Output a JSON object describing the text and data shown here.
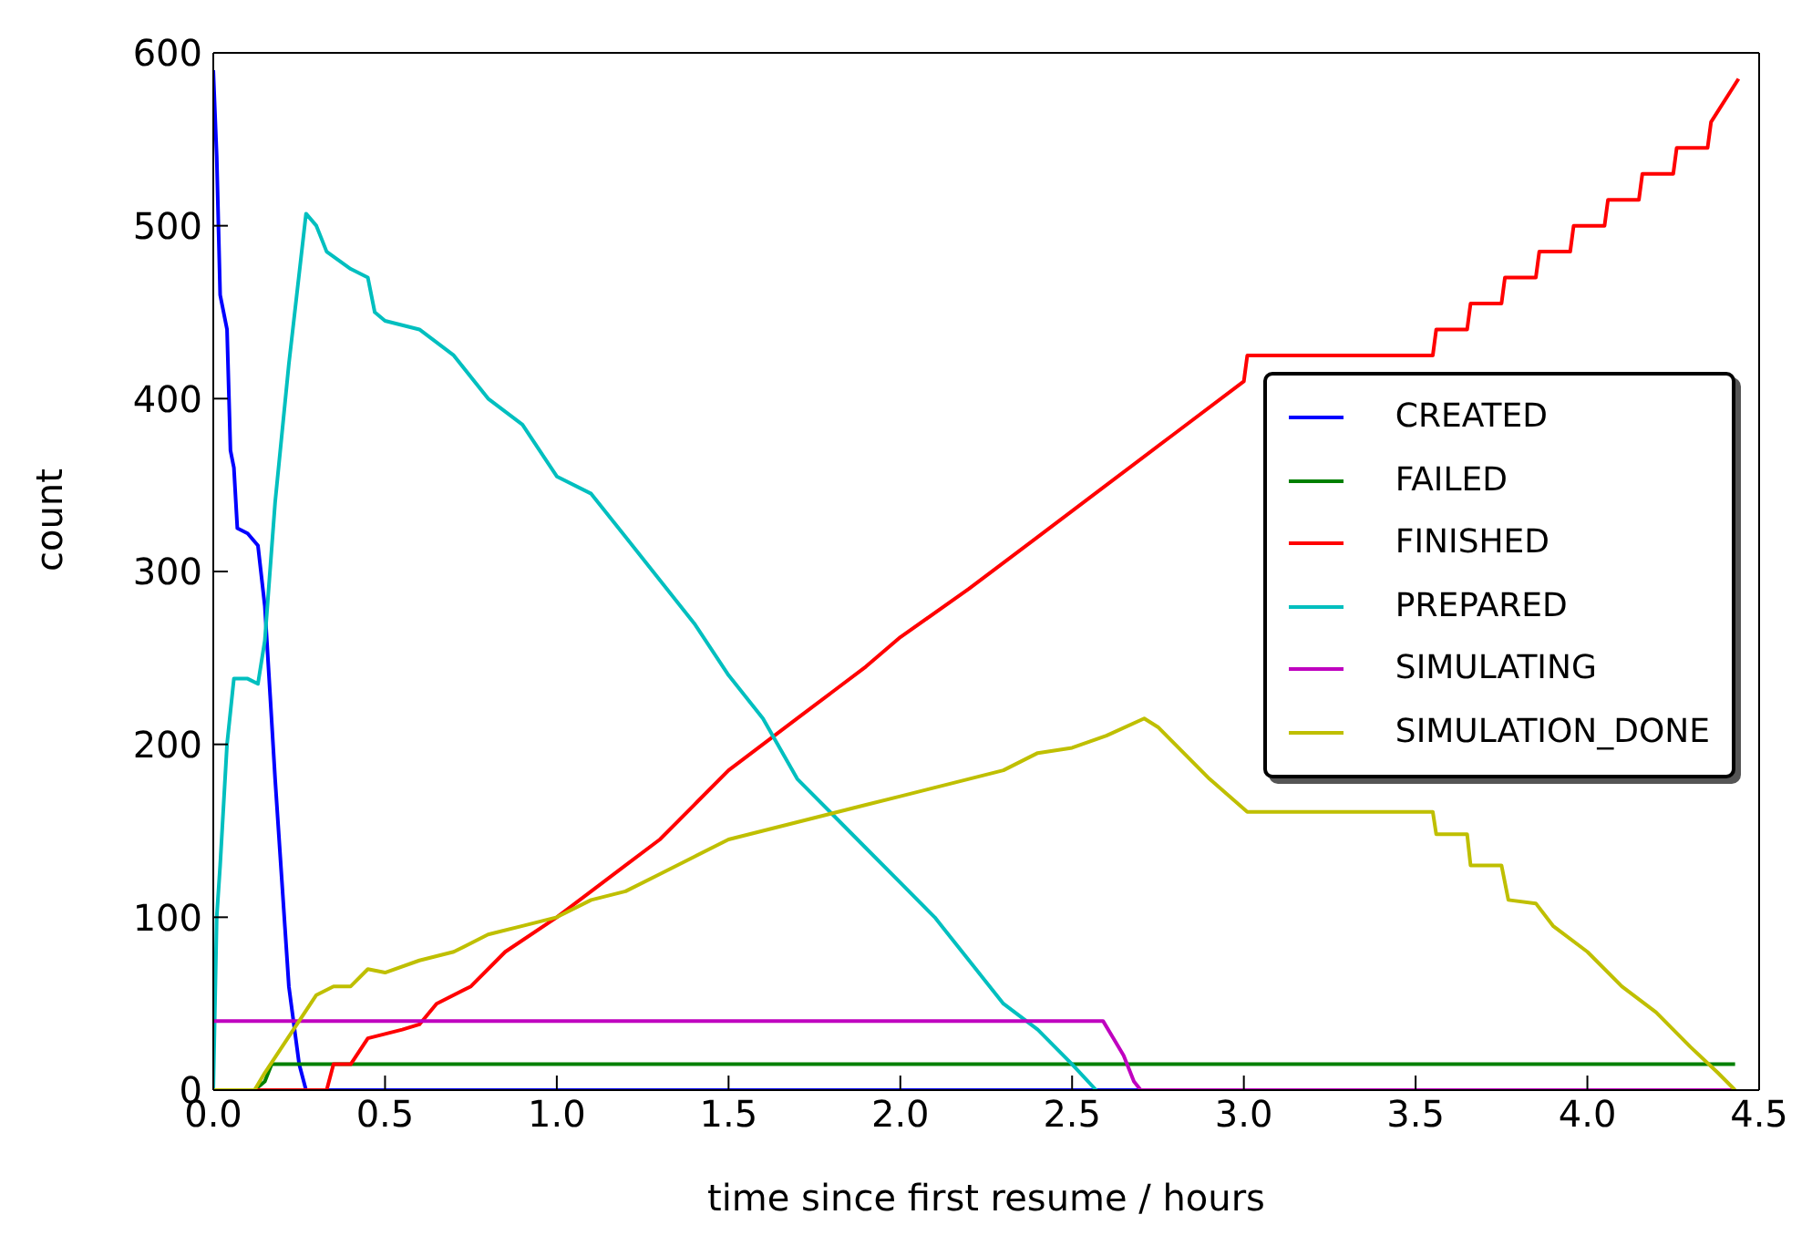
{
  "chart_data": {
    "type": "line",
    "xlabel": "time since first resume / hours",
    "ylabel": "count",
    "xlim": [
      0,
      4.5
    ],
    "ylim": [
      0,
      600
    ],
    "xticks": [
      {
        "value": 0,
        "label": "0.0"
      },
      {
        "value": 0.5,
        "label": "0.5"
      },
      {
        "value": 1,
        "label": "1.0"
      },
      {
        "value": 1.5,
        "label": "1.5"
      },
      {
        "value": 2,
        "label": "2.0"
      },
      {
        "value": 2.5,
        "label": "2.5"
      },
      {
        "value": 3,
        "label": "3.0"
      },
      {
        "value": 3.5,
        "label": "3.5"
      },
      {
        "value": 4,
        "label": "4.0"
      },
      {
        "value": 4.5,
        "label": "4.5"
      }
    ],
    "yticks": [
      0,
      100,
      200,
      300,
      400,
      500,
      600
    ],
    "grid": false,
    "legend": "right",
    "marker": "none",
    "line_style": "solid",
    "series": [
      {
        "name": "CREATED",
        "color": "#0000ff",
        "x": [
          0,
          0.01,
          0.02,
          0.04,
          0.05,
          0.06,
          0.07,
          0.1,
          0.13,
          0.15,
          0.18,
          0.2,
          0.22,
          0.25,
          0.27,
          4.43
        ],
        "values": [
          590,
          540,
          460,
          440,
          370,
          360,
          325,
          322,
          315,
          280,
          180,
          120,
          60,
          15,
          0,
          0
        ]
      },
      {
        "name": "FAILED",
        "color": "#008000",
        "x": [
          0,
          0.12,
          0.15,
          0.17,
          4.43
        ],
        "values": [
          0,
          0,
          5,
          15,
          15
        ]
      },
      {
        "name": "FINISHED",
        "color": "#ff0000",
        "x": [
          0,
          0.33,
          0.35,
          0.4,
          0.45,
          0.55,
          0.6,
          0.65,
          0.75,
          0.85,
          1,
          1.1,
          1.2,
          1.3,
          1.4,
          1.5,
          1.6,
          1.7,
          1.8,
          1.9,
          2,
          2.2,
          2.4,
          2.6,
          2.8,
          3,
          3.01,
          3.55,
          3.56,
          3.65,
          3.66,
          3.75,
          3.76,
          3.85,
          3.86,
          3.95,
          3.96,
          4.05,
          4.06,
          4.15,
          4.16,
          4.25,
          4.26,
          4.35,
          4.36,
          4.44
        ],
        "values": [
          0,
          0,
          15,
          15,
          30,
          35,
          38,
          50,
          60,
          80,
          100,
          115,
          130,
          145,
          165,
          185,
          200,
          215,
          230,
          245,
          262,
          290,
          320,
          350,
          380,
          410,
          425,
          425,
          440,
          440,
          455,
          455,
          470,
          470,
          485,
          485,
          500,
          500,
          515,
          515,
          530,
          530,
          545,
          545,
          560,
          585
        ]
      },
      {
        "name": "PREPARED",
        "color": "#00bfbf",
        "x": [
          0,
          0.01,
          0.02,
          0.04,
          0.06,
          0.1,
          0.13,
          0.15,
          0.18,
          0.22,
          0.27,
          0.3,
          0.33,
          0.4,
          0.45,
          0.47,
          0.5,
          0.6,
          0.7,
          0.8,
          0.9,
          1,
          1.1,
          1.2,
          1.3,
          1.4,
          1.5,
          1.6,
          1.7,
          1.8,
          1.9,
          2,
          2.1,
          2.2,
          2.3,
          2.4,
          2.5,
          2.57
        ],
        "values": [
          0,
          100,
          130,
          200,
          238,
          238,
          235,
          260,
          340,
          420,
          507,
          500,
          485,
          475,
          470,
          450,
          445,
          440,
          425,
          400,
          385,
          355,
          345,
          320,
          295,
          270,
          240,
          215,
          180,
          160,
          140,
          120,
          100,
          75,
          50,
          35,
          15,
          0
        ]
      },
      {
        "name": "SIMULATING",
        "color": "#bf00bf",
        "x": [
          0,
          2.59,
          2.62,
          2.65,
          2.68,
          2.7,
          4.43
        ],
        "values": [
          40,
          40,
          30,
          20,
          5,
          0,
          0
        ]
      },
      {
        "name": "SIMULATION_DONE",
        "color": "#bfbf00",
        "x": [
          0,
          0.12,
          0.15,
          0.2,
          0.25,
          0.3,
          0.35,
          0.4,
          0.45,
          0.5,
          0.6,
          0.7,
          0.8,
          0.9,
          1,
          1.1,
          1.2,
          1.3,
          1.4,
          1.5,
          1.6,
          1.7,
          1.8,
          1.9,
          2,
          2.1,
          2.2,
          2.3,
          2.4,
          2.5,
          2.6,
          2.71,
          2.75,
          2.8,
          2.9,
          3.01,
          3.55,
          3.56,
          3.65,
          3.66,
          3.75,
          3.77,
          3.85,
          3.9,
          4,
          4.1,
          4.2,
          4.3,
          4.38,
          4.43
        ],
        "values": [
          0,
          0,
          10,
          25,
          40,
          55,
          60,
          60,
          70,
          68,
          75,
          80,
          90,
          95,
          100,
          110,
          115,
          125,
          135,
          145,
          150,
          155,
          160,
          165,
          170,
          175,
          180,
          185,
          195,
          198,
          205,
          215,
          210,
          200,
          180,
          161,
          161,
          148,
          148,
          130,
          130,
          110,
          108,
          95,
          80,
          60,
          45,
          25,
          10,
          0
        ]
      }
    ]
  }
}
